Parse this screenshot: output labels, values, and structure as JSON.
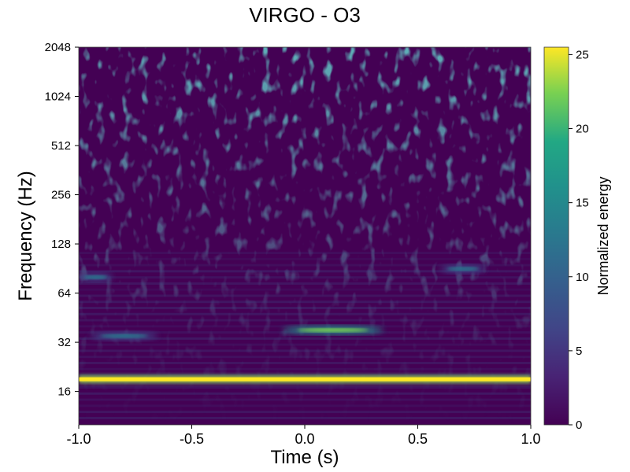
{
  "chart_data": {
    "type": "heatmap",
    "title": "VIRGO - O3",
    "xlabel": "Time (s)",
    "ylabel": "Frequency (Hz)",
    "xlim": [
      -1.0,
      1.0
    ],
    "ylim": [
      10,
      2048
    ],
    "y_scale": "log2",
    "x_ticks": [
      -1.0,
      -0.5,
      0.0,
      0.5,
      1.0
    ],
    "x_tick_labels": [
      "-1.0",
      "-0.5",
      "0.0",
      "0.5",
      "1.0"
    ],
    "y_ticks": [
      16,
      32,
      64,
      128,
      256,
      512,
      1024,
      2048
    ],
    "y_tick_labels": [
      "16",
      "32",
      "64",
      "128",
      "256",
      "512",
      "1024",
      "2048"
    ],
    "colormap": "viridis",
    "colorbar": {
      "label": "Normalized energy",
      "range": [
        0,
        25.5
      ],
      "ticks": [
        0,
        5,
        10,
        15,
        20,
        25
      ],
      "tick_labels": [
        "0",
        "5",
        "10",
        "15",
        "20",
        "25"
      ]
    },
    "features": [
      {
        "kind": "steady-line",
        "frequency_hz": 19,
        "t_range": [
          -1.0,
          1.0
        ],
        "energy": 25
      },
      {
        "kind": "blob",
        "frequency_hz": 38,
        "t_range": [
          -0.1,
          0.35
        ],
        "energy": 22
      },
      {
        "kind": "blob",
        "frequency_hz": 35,
        "t_range": [
          -0.95,
          -0.65
        ],
        "energy": 10
      },
      {
        "kind": "blob",
        "frequency_hz": 90,
        "t_range": [
          0.6,
          0.8
        ],
        "energy": 8
      },
      {
        "kind": "blob",
        "frequency_hz": 80,
        "t_range": [
          -1.0,
          -0.85
        ],
        "energy": 7
      }
    ]
  }
}
